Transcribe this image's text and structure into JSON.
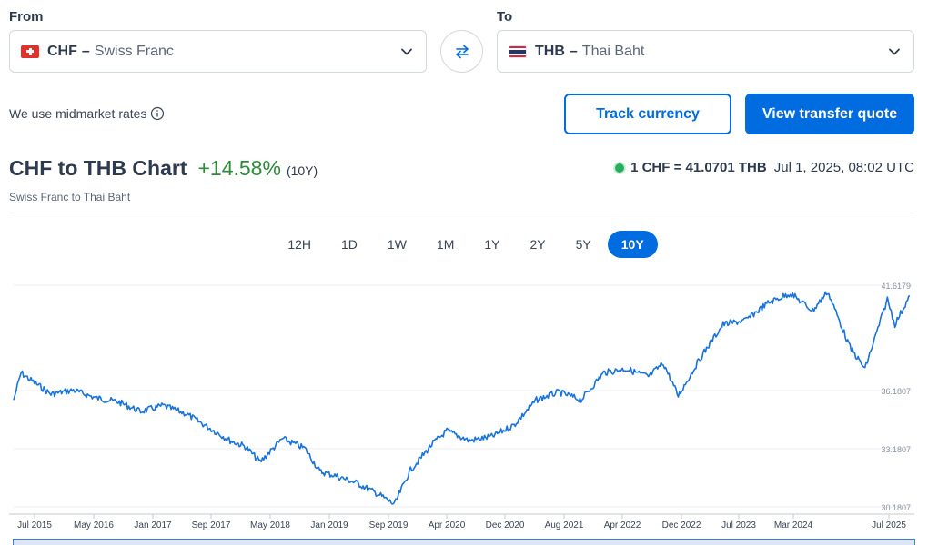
{
  "converter": {
    "from_label": "From",
    "to_label": "To",
    "from": {
      "code": "CHF",
      "separator": "–",
      "name": "Swiss Franc"
    },
    "to": {
      "code": "THB",
      "separator": "–",
      "name": "Thai Baht"
    }
  },
  "midmarket_text": "We use midmarket rates",
  "buttons": {
    "track": "Track currency",
    "quote": "View transfer quote"
  },
  "chart_header": {
    "title": "CHF to THB Chart",
    "change": "+14.58%",
    "period": "(10Y)",
    "subtitle": "Swiss Franc to Thai Baht",
    "rate": "1 CHF = 41.0701 THB",
    "timestamp": "Jul 1, 2025, 08:02 UTC"
  },
  "ranges": [
    {
      "label": "12H",
      "active": false
    },
    {
      "label": "1D",
      "active": false
    },
    {
      "label": "1W",
      "active": false
    },
    {
      "label": "1M",
      "active": false
    },
    {
      "label": "1Y",
      "active": false
    },
    {
      "label": "2Y",
      "active": false
    },
    {
      "label": "5Y",
      "active": false
    },
    {
      "label": "10Y",
      "active": true
    }
  ],
  "colors": {
    "accent": "#006ce0",
    "positive": "#2e8b3a",
    "line": "#1a73d9"
  },
  "chart_data": {
    "type": "line",
    "title": "",
    "xlabel": "",
    "ylabel": "",
    "x_ticks": [
      "Jul 2015",
      "May 2016",
      "Jan 2017",
      "Sep 2017",
      "May 2018",
      "Jan 2019",
      "Sep 2019",
      "Apr 2020",
      "Dec 2020",
      "Aug 2021",
      "Apr 2022",
      "Dec 2022",
      "Jul 2023",
      "Mar 2024",
      "Jul 2025"
    ],
    "y_ticks": [
      "41.6179",
      "36.1807",
      "33.1807",
      "30.1807"
    ],
    "y_tick_values": [
      41.6179,
      36.1807,
      33.1807,
      30.1807
    ],
    "ylim": [
      30.1807,
      41.6179
    ],
    "series": [
      {
        "x": [
          "2015-07",
          "2015-08",
          "2015-09",
          "2015-12",
          "2016-03",
          "2016-06",
          "2016-09",
          "2016-12",
          "2017-03",
          "2017-06",
          "2017-09",
          "2017-12",
          "2018-02",
          "2018-04",
          "2018-07",
          "2018-10",
          "2018-12",
          "2019-02",
          "2019-05",
          "2019-08",
          "2019-10",
          "2019-12",
          "2020-03",
          "2020-05",
          "2020-08",
          "2020-11",
          "2021-02",
          "2021-05",
          "2021-08",
          "2021-11",
          "2022-02",
          "2022-05",
          "2022-08",
          "2022-10",
          "2022-12",
          "2023-03",
          "2023-06",
          "2023-09",
          "2023-12",
          "2024-03",
          "2024-06",
          "2024-08",
          "2024-11",
          "2025-01",
          "2025-04",
          "2025-05",
          "2025-07"
        ],
        "y": [
          35.7,
          37.1,
          36.8,
          36.0,
          36.2,
          35.8,
          35.6,
          35.1,
          35.4,
          35.0,
          34.3,
          33.6,
          33.3,
          32.5,
          33.7,
          33.2,
          32.0,
          31.8,
          31.4,
          30.8,
          30.3,
          32.0,
          33.4,
          34.1,
          33.6,
          33.8,
          34.4,
          35.7,
          36.1,
          35.7,
          37.1,
          37.3,
          36.9,
          37.6,
          35.9,
          37.9,
          39.6,
          39.8,
          40.7,
          41.2,
          40.3,
          41.3,
          38.4,
          37.3,
          40.9,
          39.6,
          41.07
        ]
      }
    ]
  }
}
